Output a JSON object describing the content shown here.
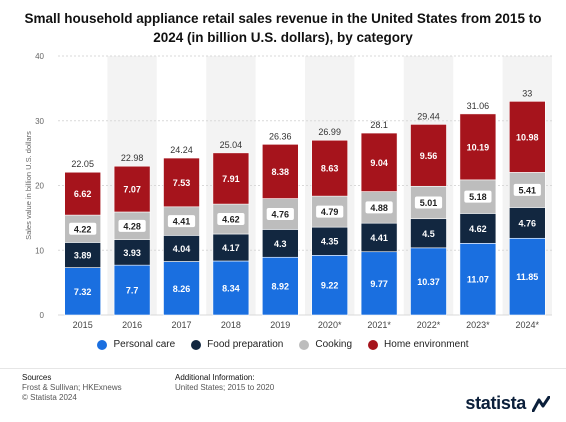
{
  "title": "Small household appliance retail sales revenue in the United States from 2015 to 2024 (in billion U.S. dollars), by category",
  "chart_data": {
    "type": "bar",
    "stacked": true,
    "categories": [
      "2015",
      "2016",
      "2017",
      "2018",
      "2019",
      "2020*",
      "2021*",
      "2022*",
      "2023*",
      "2024*"
    ],
    "series": [
      {
        "name": "Personal care",
        "color": "#1a6fe0",
        "values": [
          7.32,
          7.7,
          8.26,
          8.34,
          8.92,
          9.22,
          9.77,
          10.37,
          11.07,
          11.85
        ]
      },
      {
        "name": "Food preparation",
        "color": "#122740",
        "values": [
          3.89,
          3.93,
          4.04,
          4.17,
          4.3,
          4.35,
          4.41,
          4.5,
          4.62,
          4.76
        ]
      },
      {
        "name": "Cooking",
        "color": "#bdbdbd",
        "values": [
          4.22,
          4.28,
          4.41,
          4.62,
          4.76,
          4.79,
          4.88,
          5.01,
          5.18,
          5.41
        ]
      },
      {
        "name": "Home environment",
        "color": "#a6141c",
        "values": [
          6.62,
          7.07,
          7.53,
          7.91,
          8.38,
          8.63,
          9.04,
          9.56,
          10.19,
          10.98
        ]
      }
    ],
    "totals": [
      "22.05",
      "22.98",
      "24.24",
      "25.04",
      "26.36",
      "26.99",
      "28.1",
      "29.44",
      "31.06",
      "33"
    ],
    "ylabel": "Sales value in billion U.S. dollars",
    "ylim": [
      0,
      40
    ],
    "yticks": [
      0,
      10,
      20,
      30,
      40
    ],
    "grid": true,
    "legend_position": "bottom"
  },
  "footer": {
    "sources_heading": "Sources",
    "sources_lines": [
      "Frost & Sullivan; HKExnews",
      "© Statista 2024"
    ],
    "additional_heading": "Additional Information:",
    "additional_lines": [
      "United States; 2015 to 2020"
    ]
  },
  "brand": "statista"
}
